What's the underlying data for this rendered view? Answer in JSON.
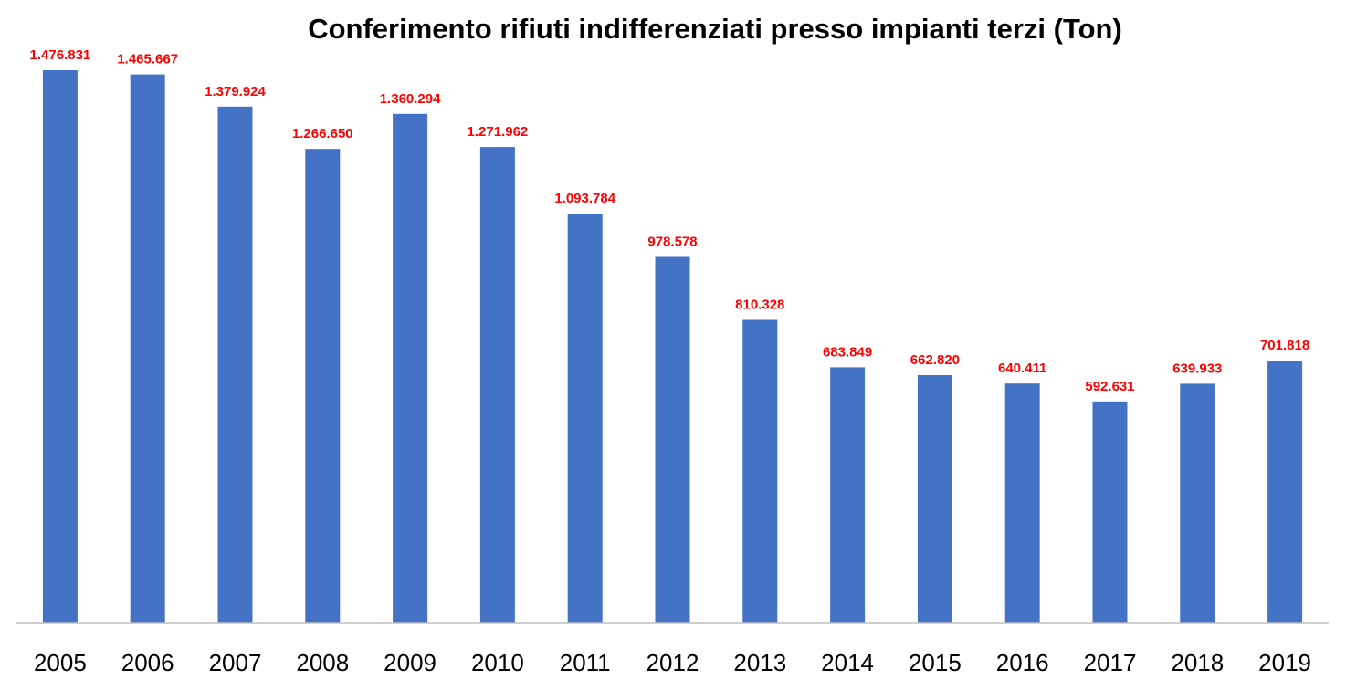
{
  "chart_data": {
    "type": "bar",
    "title": "Conferimento rifiuti indifferenziati presso impianti terzi (Ton)",
    "xlabel": "",
    "ylabel": "",
    "categories": [
      "2005",
      "2006",
      "2007",
      "2008",
      "2009",
      "2010",
      "2011",
      "2012",
      "2013",
      "2014",
      "2015",
      "2016",
      "2017",
      "2018",
      "2019"
    ],
    "values": [
      1476831,
      1465667,
      1379924,
      1266650,
      1360294,
      1271962,
      1093784,
      978578,
      810328,
      683849,
      662820,
      640411,
      592631,
      639933,
      701818
    ],
    "data_labels": [
      "1.476.831",
      "1.465.667",
      "1.379.924",
      "1.266.650",
      "1.360.294",
      "1.271.962",
      "1.093.784",
      "978.578",
      "810.328",
      "683.849",
      "662.820",
      "640.411",
      "592.631",
      "639.933",
      "701.818"
    ],
    "ylim": [
      0,
      1500000
    ],
    "grid": false,
    "legend": "none",
    "colors": {
      "bar": "#4472C4",
      "data_label": "#FF0000",
      "axis": "#BFBFBF"
    }
  }
}
